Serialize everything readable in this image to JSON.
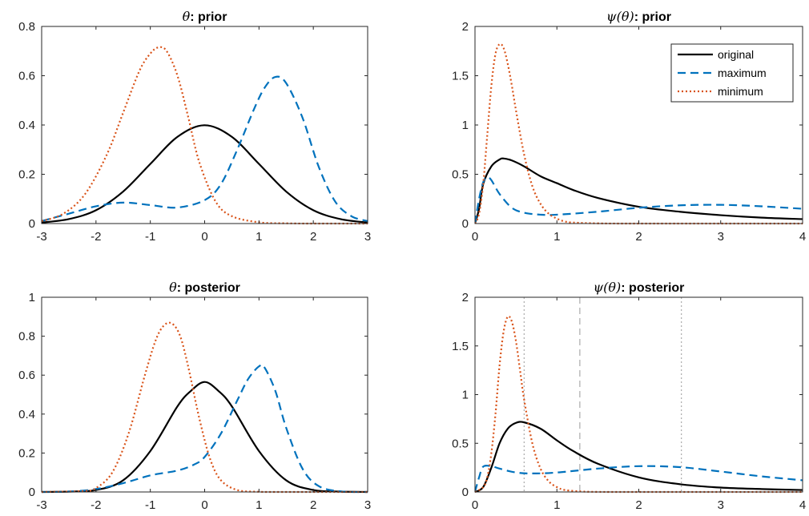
{
  "chart_data": [
    {
      "type": "line",
      "title": "θ: prior",
      "title_symbol": "θ",
      "title_rest": ": prior",
      "xlim": [
        -3,
        3
      ],
      "ylim": [
        0,
        0.8
      ],
      "xticks": [
        "-3",
        "-2",
        "-1",
        "0",
        "1",
        "2",
        "3"
      ],
      "yticks": [
        "0",
        "0.2",
        "0.4",
        "0.6",
        "0.8"
      ],
      "grid": false,
      "series": [
        {
          "name": "original",
          "style": "solid",
          "color": "#000000",
          "x": [
            -3,
            -2.5,
            -2,
            -1.5,
            -1,
            -0.5,
            0,
            0.5,
            1,
            1.5,
            2,
            2.5,
            3
          ],
          "y": [
            0.004,
            0.018,
            0.054,
            0.13,
            0.242,
            0.352,
            0.399,
            0.352,
            0.242,
            0.13,
            0.054,
            0.018,
            0.004
          ]
        },
        {
          "name": "maximum",
          "style": "dashed",
          "color": "#0072BD",
          "x": [
            -3,
            -2.5,
            -2,
            -1.5,
            -1,
            -0.5,
            0,
            0.3,
            0.6,
            0.9,
            1.1,
            1.3,
            1.5,
            1.8,
            2.1,
            2.4,
            2.7,
            3
          ],
          "y": [
            0.01,
            0.04,
            0.07,
            0.085,
            0.075,
            0.065,
            0.095,
            0.16,
            0.3,
            0.46,
            0.55,
            0.595,
            0.57,
            0.43,
            0.23,
            0.09,
            0.03,
            0.01
          ]
        },
        {
          "name": "minimum",
          "style": "dotted",
          "color": "#D95319",
          "x": [
            -3,
            -2.6,
            -2.2,
            -1.8,
            -1.5,
            -1.2,
            -1.0,
            -0.85,
            -0.7,
            -0.5,
            -0.3,
            -0.1,
            0.2,
            0.5,
            1,
            1.5,
            2,
            3
          ],
          "y": [
            0.01,
            0.04,
            0.12,
            0.28,
            0.45,
            0.62,
            0.69,
            0.715,
            0.7,
            0.6,
            0.43,
            0.25,
            0.09,
            0.03,
            0.005,
            0.001,
            0,
            0
          ]
        }
      ]
    },
    {
      "type": "line",
      "title": "ψ(θ): prior",
      "title_symbol": "ψ(θ)",
      "title_rest": ": prior",
      "xlim": [
        0,
        4
      ],
      "ylim": [
        0,
        2
      ],
      "xticks": [
        "0",
        "1",
        "2",
        "3",
        "4"
      ],
      "yticks": [
        "0",
        "0.5",
        "1",
        "1.5",
        "2"
      ],
      "grid": false,
      "legend": {
        "placement": "top-right",
        "entries": [
          "original",
          "maximum",
          "minimum"
        ]
      },
      "series": [
        {
          "name": "original",
          "style": "solid",
          "color": "#000000",
          "x": [
            0,
            0.05,
            0.1,
            0.2,
            0.3,
            0.35,
            0.45,
            0.6,
            0.8,
            1,
            1.2,
            1.5,
            2,
            2.5,
            3,
            3.5,
            4
          ],
          "y": [
            0,
            0.15,
            0.4,
            0.58,
            0.65,
            0.66,
            0.64,
            0.58,
            0.48,
            0.41,
            0.34,
            0.26,
            0.17,
            0.12,
            0.085,
            0.06,
            0.045
          ]
        },
        {
          "name": "maximum",
          "style": "dashed",
          "color": "#0072BD",
          "x": [
            0,
            0.05,
            0.1,
            0.15,
            0.2,
            0.3,
            0.45,
            0.6,
            0.8,
            1,
            1.5,
            2,
            2.5,
            3,
            3.5,
            4
          ],
          "y": [
            0,
            0.25,
            0.42,
            0.47,
            0.44,
            0.3,
            0.16,
            0.11,
            0.09,
            0.09,
            0.12,
            0.16,
            0.185,
            0.19,
            0.175,
            0.15
          ]
        },
        {
          "name": "minimum",
          "style": "dotted",
          "color": "#D95319",
          "x": [
            0,
            0.05,
            0.1,
            0.15,
            0.2,
            0.25,
            0.3,
            0.35,
            0.4,
            0.45,
            0.5,
            0.6,
            0.7,
            0.8,
            0.9,
            1,
            1.1,
            1.2,
            1.5,
            2,
            4
          ],
          "y": [
            0,
            0.1,
            0.4,
            0.9,
            1.4,
            1.72,
            1.82,
            1.78,
            1.62,
            1.4,
            1.15,
            0.7,
            0.38,
            0.2,
            0.1,
            0.05,
            0.02,
            0.01,
            0.002,
            0,
            0
          ]
        }
      ]
    },
    {
      "type": "line",
      "title": "θ: posterior",
      "title_symbol": "θ",
      "title_rest": ": posterior",
      "xlim": [
        -3,
        3
      ],
      "ylim": [
        0,
        1
      ],
      "xticks": [
        "-3",
        "-2",
        "-1",
        "0",
        "1",
        "2",
        "3"
      ],
      "yticks": [
        "0",
        "0.2",
        "0.4",
        "0.6",
        "0.8",
        "1"
      ],
      "grid": false,
      "series": [
        {
          "name": "original",
          "style": "solid",
          "color": "#000000",
          "x": [
            -3,
            -2.5,
            -2,
            -1.5,
            -1,
            -0.5,
            -0.25,
            0,
            0.25,
            0.5,
            1,
            1.5,
            2,
            2.5,
            3
          ],
          "y": [
            0,
            0.002,
            0.01,
            0.06,
            0.21,
            0.44,
            0.52,
            0.565,
            0.52,
            0.44,
            0.21,
            0.06,
            0.01,
            0.002,
            0
          ]
        },
        {
          "name": "maximum",
          "style": "dashed",
          "color": "#0072BD",
          "x": [
            -3,
            -2.5,
            -2,
            -1.5,
            -1,
            -0.5,
            -0.2,
            0,
            0.3,
            0.6,
            0.8,
            1.0,
            1.1,
            1.3,
            1.5,
            1.8,
            2.1,
            2.5,
            3
          ],
          "y": [
            0,
            0.002,
            0.015,
            0.045,
            0.085,
            0.11,
            0.14,
            0.18,
            0.3,
            0.47,
            0.58,
            0.645,
            0.64,
            0.52,
            0.33,
            0.12,
            0.03,
            0.003,
            0
          ]
        },
        {
          "name": "minimum",
          "style": "dotted",
          "color": "#D95319",
          "x": [
            -3,
            -2.2,
            -2,
            -1.7,
            -1.4,
            -1.1,
            -0.9,
            -0.75,
            -0.6,
            -0.45,
            -0.3,
            -0.1,
            0.1,
            0.3,
            0.6,
            1,
            1.5,
            3
          ],
          "y": [
            0,
            0.005,
            0.02,
            0.1,
            0.3,
            0.6,
            0.78,
            0.855,
            0.865,
            0.8,
            0.64,
            0.38,
            0.17,
            0.06,
            0.01,
            0.001,
            0,
            0
          ]
        }
      ]
    },
    {
      "type": "line",
      "title": "ψ(θ): posterior",
      "title_symbol": "ψ(θ)",
      "title_rest": ": posterior",
      "xlim": [
        0,
        4
      ],
      "ylim": [
        0,
        2
      ],
      "xticks": [
        "0",
        "1",
        "2",
        "3",
        "4"
      ],
      "yticks": [
        "0",
        "0.5",
        "1",
        "1.5",
        "2"
      ],
      "grid": false,
      "vlines": [
        {
          "x": 0.6,
          "style": "dotted",
          "color": "#aaaaaa"
        },
        {
          "x": 1.28,
          "style": "dashed",
          "color": "#aaaaaa"
        },
        {
          "x": 2.52,
          "style": "dotted",
          "color": "#aaaaaa"
        }
      ],
      "series": [
        {
          "name": "original",
          "style": "solid",
          "color": "#000000",
          "x": [
            0,
            0.1,
            0.2,
            0.3,
            0.4,
            0.5,
            0.6,
            0.8,
            1,
            1.2,
            1.5,
            2,
            2.5,
            3,
            3.5,
            4
          ],
          "y": [
            0,
            0.05,
            0.25,
            0.5,
            0.65,
            0.71,
            0.715,
            0.65,
            0.53,
            0.42,
            0.29,
            0.15,
            0.08,
            0.045,
            0.03,
            0.02
          ]
        },
        {
          "name": "maximum",
          "style": "dashed",
          "color": "#0072BD",
          "x": [
            0,
            0.05,
            0.1,
            0.2,
            0.3,
            0.5,
            0.7,
            1,
            1.5,
            2,
            2.5,
            3,
            3.5,
            4
          ],
          "y": [
            0,
            0.15,
            0.26,
            0.265,
            0.24,
            0.2,
            0.19,
            0.2,
            0.24,
            0.265,
            0.255,
            0.21,
            0.16,
            0.12
          ]
        },
        {
          "name": "minimum",
          "style": "dotted",
          "color": "#D95319",
          "x": [
            0,
            0.1,
            0.15,
            0.2,
            0.25,
            0.3,
            0.35,
            0.4,
            0.45,
            0.5,
            0.55,
            0.6,
            0.7,
            0.8,
            0.9,
            1,
            1.1,
            1.3,
            1.5,
            2,
            4
          ],
          "y": [
            0,
            0.05,
            0.15,
            0.4,
            0.8,
            1.3,
            1.65,
            1.8,
            1.75,
            1.55,
            1.25,
            0.95,
            0.5,
            0.24,
            0.11,
            0.05,
            0.02,
            0.005,
            0.001,
            0,
            0
          ]
        }
      ]
    }
  ]
}
